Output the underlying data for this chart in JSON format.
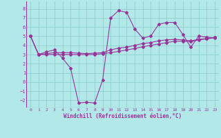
{
  "xlabel": "Windchill (Refroidissement éolien,°C)",
  "xlim": [
    -0.5,
    23.5
  ],
  "ylim": [
    -2.8,
    8.8
  ],
  "yticks": [
    -2,
    -1,
    0,
    1,
    2,
    3,
    4,
    5,
    6,
    7,
    8
  ],
  "xticks": [
    0,
    1,
    2,
    3,
    4,
    5,
    6,
    7,
    8,
    9,
    10,
    11,
    12,
    13,
    14,
    15,
    16,
    17,
    18,
    19,
    20,
    21,
    22,
    23
  ],
  "background_color": "#b2e8e8",
  "grid_color": "#8ecece",
  "line_color": "#993399",
  "line1_x": [
    0,
    1,
    2,
    3,
    4,
    5,
    6,
    7,
    8,
    9,
    10,
    11,
    12,
    13,
    14,
    15,
    16,
    17,
    18,
    19,
    20,
    21,
    22,
    23
  ],
  "line1_y": [
    5.0,
    3.0,
    3.3,
    3.5,
    2.6,
    1.5,
    -2.3,
    -2.2,
    -2.3,
    0.2,
    7.0,
    7.8,
    7.6,
    5.8,
    4.8,
    5.0,
    6.3,
    6.5,
    6.5,
    5.2,
    3.8,
    5.0,
    4.9,
    4.8
  ],
  "line2_x": [
    0,
    1,
    2,
    3,
    4,
    5,
    6,
    7,
    8,
    9,
    10,
    11,
    12,
    13,
    14,
    15,
    16,
    17,
    18,
    19,
    20,
    21,
    22,
    23
  ],
  "line2_y": [
    5.0,
    3.0,
    3.1,
    3.2,
    3.2,
    3.2,
    3.15,
    3.1,
    3.15,
    3.2,
    3.5,
    3.7,
    3.8,
    4.0,
    4.2,
    4.3,
    4.5,
    4.6,
    4.65,
    4.6,
    4.5,
    4.65,
    4.75,
    4.85
  ],
  "line3_x": [
    0,
    1,
    2,
    3,
    4,
    5,
    6,
    7,
    8,
    9,
    10,
    11,
    12,
    13,
    14,
    15,
    16,
    17,
    18,
    19,
    20,
    21,
    22,
    23
  ],
  "line3_y": [
    5.0,
    3.0,
    3.0,
    3.0,
    3.0,
    3.0,
    3.0,
    3.0,
    3.0,
    3.1,
    3.2,
    3.35,
    3.5,
    3.65,
    3.85,
    4.0,
    4.15,
    4.3,
    4.45,
    4.45,
    4.4,
    4.6,
    4.7,
    4.85
  ]
}
